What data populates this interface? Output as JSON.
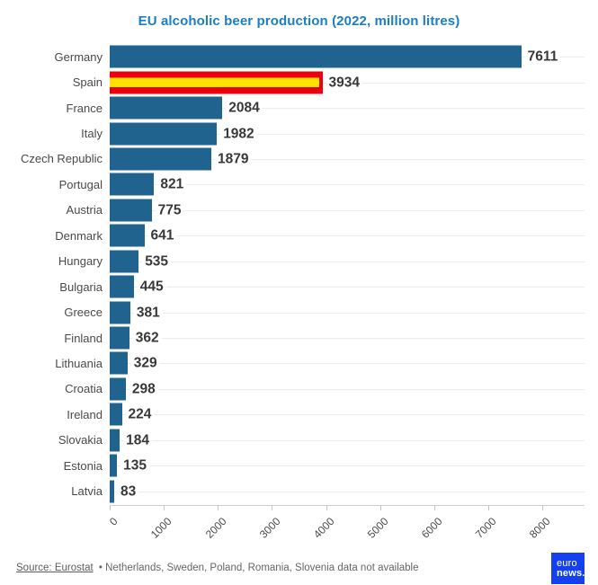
{
  "title": "EU alcoholic beer production (2022, million litres)",
  "colors": {
    "title_blue": "#1b7fc3",
    "bar_blue": "#20638f",
    "flag_red": "#ea000c",
    "flag_yellow": "#ffe400",
    "logo_blue": "#1540f0"
  },
  "chart_data": {
    "type": "bar",
    "orientation": "horizontal",
    "title": "EU alcoholic beer production (2022, million litres)",
    "categories": [
      "Germany",
      "Spain",
      "France",
      "Italy",
      "Czech Republic",
      "Portugal",
      "Austria",
      "Denmark",
      "Hungary",
      "Bulgaria",
      "Greece",
      "Finland",
      "Lithuania",
      "Croatia",
      "Ireland",
      "Slovakia",
      "Estonia",
      "Latvia"
    ],
    "values": [
      7611,
      3934,
      2084,
      1982,
      1879,
      821,
      775,
      641,
      535,
      445,
      381,
      362,
      329,
      298,
      224,
      184,
      135,
      83
    ],
    "highlight_category": "Spain",
    "highlight_style": "spanish-flag-stripes",
    "xlim": [
      0,
      8000
    ],
    "x_ticks": [
      0,
      1000,
      2000,
      3000,
      4000,
      5000,
      6000,
      7000,
      8000
    ],
    "grid": "light horizontal line per category row",
    "legend": "none",
    "value_labels": "bold, right of each bar"
  },
  "footer": {
    "source_label": "Source: Eurostat",
    "note": "• Netherlands, Sweden, Poland, Romania, Slovenia data not available"
  },
  "logo": {
    "line1": "euro",
    "line2": "news."
  }
}
